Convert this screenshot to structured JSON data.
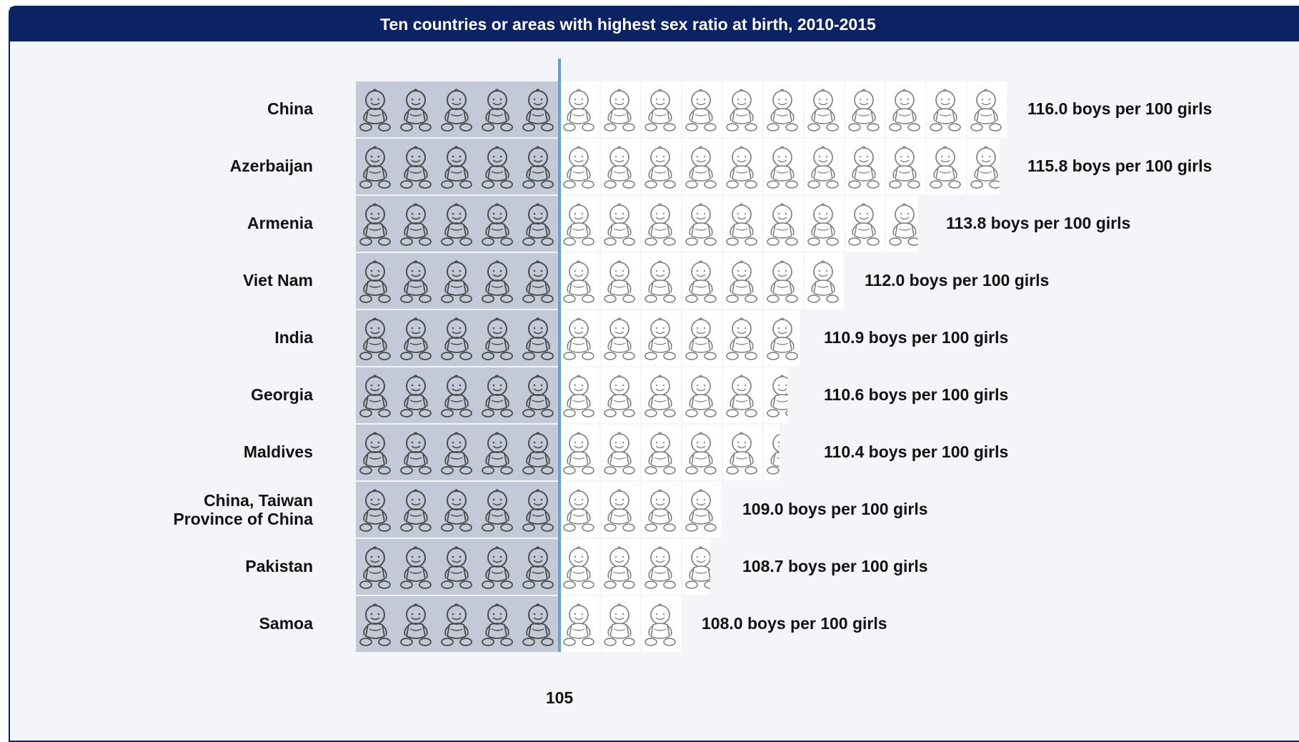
{
  "title": "Ten countries or areas with highest sex ratio at birth, 2010-2015",
  "reference": {
    "value": 105,
    "label": "105"
  },
  "colors": {
    "header": "#0b2263",
    "baseline_block": "#c3c9d6",
    "reference_line": "#5fa3dc",
    "icon_stroke": "#4a4a4a",
    "icon_stroke_light": "#7a7a7a"
  },
  "icon": "baby-icon",
  "chart_data": {
    "type": "bar",
    "title": "Ten countries or areas with highest sex ratio at birth, 2010-2015",
    "unit": "boys per 100 girls",
    "categories": [
      "China",
      "Azerbaijan",
      "Armenia",
      "Viet Nam",
      "India",
      "Georgia",
      "Maldives",
      "China, Taiwan Province of China",
      "Pakistan",
      "Samoa"
    ],
    "category_lines": [
      [
        "China"
      ],
      [
        "Azerbaijan"
      ],
      [
        "Armenia"
      ],
      [
        "Viet Nam"
      ],
      [
        "India"
      ],
      [
        "Georgia"
      ],
      [
        "Maldives"
      ],
      [
        "China, Taiwan",
        "Province of China"
      ],
      [
        "Pakistan"
      ],
      [
        "Samoa"
      ]
    ],
    "values": [
      116.0,
      115.8,
      113.8,
      112.0,
      110.9,
      110.6,
      110.4,
      109.0,
      108.7,
      108.0
    ],
    "value_labels": [
      "116.0 boys per 100 girls",
      "115.8 boys per 100 girls",
      "113.8 boys per 100 girls",
      "112.0 boys per 100 girls",
      "110.9 boys per 100 girls",
      "110.6 boys per 100 girls",
      "110.4 boys per 100 girls",
      "109.0 boys per 100 girls",
      "108.7 boys per 100 girls",
      "108.0 boys per 100 girls"
    ],
    "icons_below_reference": 5,
    "icon_unit": 1,
    "reference_value": 105
  }
}
